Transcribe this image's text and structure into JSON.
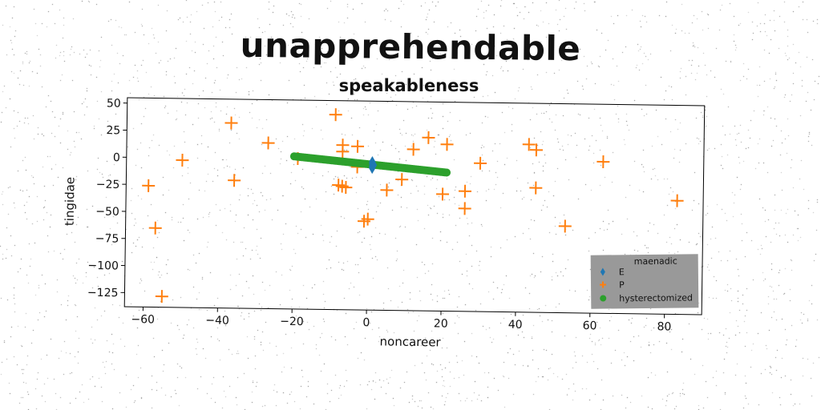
{
  "title": "unapprehendable",
  "chart_data": {
    "type": "scatter",
    "subtitle": "speakableness",
    "xlabel": "noncareer",
    "ylabel": "tingidae",
    "xlim": [
      -65,
      90
    ],
    "ylim": [
      -138,
      55
    ],
    "xticks": [
      -60,
      -40,
      -20,
      0,
      20,
      40,
      60,
      80
    ],
    "yticks": [
      50,
      25,
      0,
      -25,
      -50,
      -75,
      -100,
      -125
    ],
    "xtick_labels": [
      "−60",
      "−40",
      "−20",
      "0",
      "20",
      "40",
      "60",
      "80"
    ],
    "ytick_labels": [
      "50",
      "25",
      "0",
      "−25",
      "−50",
      "−75",
      "−100",
      "−125"
    ],
    "grid": false,
    "legend": {
      "title": "maenadic",
      "placement": "bottom-right",
      "background": "#999999"
    },
    "series": [
      {
        "name": "E",
        "marker": "thin-diamond",
        "color": "#1f77b4",
        "points": [
          [
            1,
            -1
          ],
          [
            1,
            -3
          ],
          [
            1,
            -5
          ],
          [
            1,
            -7
          ],
          [
            1,
            -2
          ],
          [
            1,
            -6
          ],
          [
            1.4,
            -4
          ]
        ]
      },
      {
        "name": "P",
        "marker": "plus",
        "color": "#ff7f0e",
        "points": [
          [
            -9,
            42
          ],
          [
            -37,
            33
          ],
          [
            -27,
            15
          ],
          [
            -7,
            14
          ],
          [
            -3,
            13
          ],
          [
            -7,
            8
          ],
          [
            -3,
            -6
          ],
          [
            -19,
            1
          ],
          [
            -50,
            -2
          ],
          [
            -36,
            -20
          ],
          [
            -59,
            -26
          ],
          [
            -57,
            -65
          ],
          [
            -55,
            -128
          ],
          [
            -8,
            -23
          ],
          [
            -7,
            -24
          ],
          [
            -6,
            -25
          ],
          [
            -1,
            -56
          ],
          [
            0,
            -54
          ],
          [
            5,
            -27
          ],
          [
            9,
            -17
          ],
          [
            12,
            11
          ],
          [
            16,
            22
          ],
          [
            21,
            16
          ],
          [
            20,
            -30
          ],
          [
            26,
            -27
          ],
          [
            26,
            -43
          ],
          [
            30,
            -1
          ],
          [
            43,
            17
          ],
          [
            45,
            12
          ],
          [
            45,
            -23
          ],
          [
            53,
            -58
          ],
          [
            63,
            2
          ],
          [
            83,
            -33
          ]
        ]
      },
      {
        "name": "hysterectomized",
        "marker": "circle",
        "color": "#2ca02c",
        "line_from": [
          -20,
          3
        ],
        "line_to": [
          21,
          -10
        ],
        "count": 82
      }
    ]
  }
}
